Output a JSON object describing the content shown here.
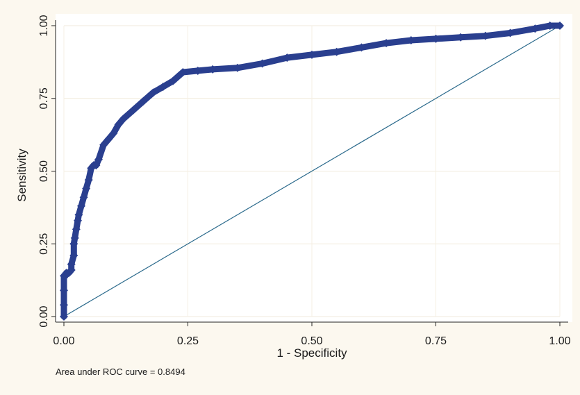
{
  "chart_data": {
    "type": "scatter",
    "xlabel": "1 - Specificity",
    "ylabel": "Sensitivity",
    "xlim": [
      0,
      1
    ],
    "ylim": [
      0,
      1
    ],
    "x_ticks": [
      "0.00",
      "0.25",
      "0.50",
      "0.75",
      "1.00"
    ],
    "y_ticks": [
      "0.00",
      "0.25",
      "0.50",
      "0.75",
      "1.00"
    ],
    "annotation": "Area under ROC curve = 0.8494",
    "grid": true,
    "colors": {
      "curve": "#2a3f8f",
      "reference": "#2b6a8c",
      "plot_background": "#ffffff",
      "page_background": "#fcf8ef"
    },
    "series": [
      {
        "type": "roc-curve",
        "x": [
          0.0,
          0.0,
          0.0,
          0.0,
          0.003,
          0.005,
          0.01,
          0.015,
          0.015,
          0.02,
          0.02,
          0.022,
          0.025,
          0.028,
          0.03,
          0.035,
          0.04,
          0.045,
          0.05,
          0.055,
          0.06,
          0.065,
          0.07,
          0.08,
          0.09,
          0.1,
          0.11,
          0.12,
          0.14,
          0.16,
          0.18,
          0.2,
          0.22,
          0.24,
          0.27,
          0.3,
          0.35,
          0.4,
          0.45,
          0.5,
          0.55,
          0.6,
          0.65,
          0.7,
          0.75,
          0.8,
          0.85,
          0.9,
          0.95,
          0.98,
          1.0
        ],
        "y": [
          0.0,
          0.04,
          0.09,
          0.14,
          0.14,
          0.15,
          0.15,
          0.16,
          0.18,
          0.21,
          0.25,
          0.27,
          0.3,
          0.33,
          0.35,
          0.38,
          0.41,
          0.44,
          0.47,
          0.51,
          0.52,
          0.52,
          0.54,
          0.59,
          0.61,
          0.63,
          0.66,
          0.68,
          0.71,
          0.74,
          0.77,
          0.79,
          0.81,
          0.84,
          0.845,
          0.85,
          0.855,
          0.87,
          0.89,
          0.9,
          0.91,
          0.925,
          0.94,
          0.95,
          0.955,
          0.96,
          0.965,
          0.975,
          0.99,
          1.0,
          1.0
        ]
      },
      {
        "type": "reference-line",
        "x": [
          0,
          1
        ],
        "y": [
          0,
          1
        ]
      }
    ]
  }
}
